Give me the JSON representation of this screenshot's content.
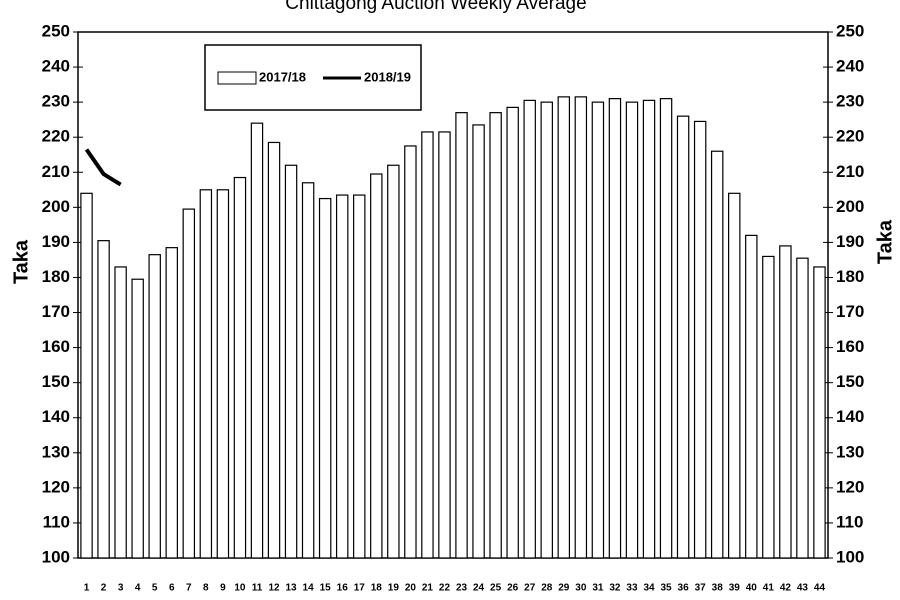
{
  "chart_data": {
    "type": "bar",
    "title": "Chittagong Auction Weekly Average",
    "ylabel": "Taka",
    "y2label": "Taka",
    "categories": [
      "1",
      "2",
      "3",
      "4",
      "5",
      "6",
      "7",
      "8",
      "9",
      "10",
      "11",
      "12",
      "13",
      "14",
      "15",
      "16",
      "17",
      "18",
      "19",
      "20",
      "21",
      "22",
      "23",
      "24",
      "25",
      "26",
      "27",
      "28",
      "29",
      "30",
      "31",
      "32",
      "33",
      "34",
      "35",
      "36",
      "37",
      "38",
      "39",
      "40",
      "41",
      "42",
      "43",
      "44"
    ],
    "series": [
      {
        "name": "2017/18",
        "type": "bar",
        "color": "#ffffff",
        "values": [
          204,
          190.5,
          183,
          179.5,
          186.5,
          188.5,
          199.5,
          205,
          205,
          208.5,
          224,
          218.5,
          212,
          207,
          202.5,
          203.5,
          203.5,
          209.5,
          212,
          217.5,
          221.5,
          221.5,
          227,
          223.5,
          227,
          228.5,
          230.5,
          230,
          231.5,
          231.5,
          230,
          231,
          230,
          230.5,
          231,
          226,
          224.5,
          216,
          204,
          192,
          186,
          189,
          185.5,
          183
        ]
      },
      {
        "name": "2018/19",
        "type": "line",
        "color": "#000000",
        "values": [
          216.5,
          209.5,
          206.5,
          null,
          null,
          null,
          null,
          null,
          null,
          null,
          null,
          null,
          null,
          null,
          null,
          null,
          null,
          null,
          null,
          null,
          null,
          null,
          null,
          null,
          null,
          null,
          null,
          null,
          null,
          null,
          null,
          null,
          null,
          null,
          null,
          null,
          null,
          null,
          null,
          null,
          null,
          null,
          null,
          null
        ]
      }
    ],
    "ylim": [
      100,
      250
    ],
    "yticks": [
      100,
      110,
      120,
      130,
      140,
      150,
      160,
      170,
      180,
      190,
      200,
      210,
      220,
      230,
      240,
      250
    ],
    "y2lim": [
      100,
      250
    ],
    "y2ticks": [
      100,
      110,
      120,
      130,
      140,
      150,
      160,
      170,
      180,
      190,
      200,
      210,
      220,
      230,
      240,
      250
    ],
    "grid": false,
    "legend": "top"
  }
}
